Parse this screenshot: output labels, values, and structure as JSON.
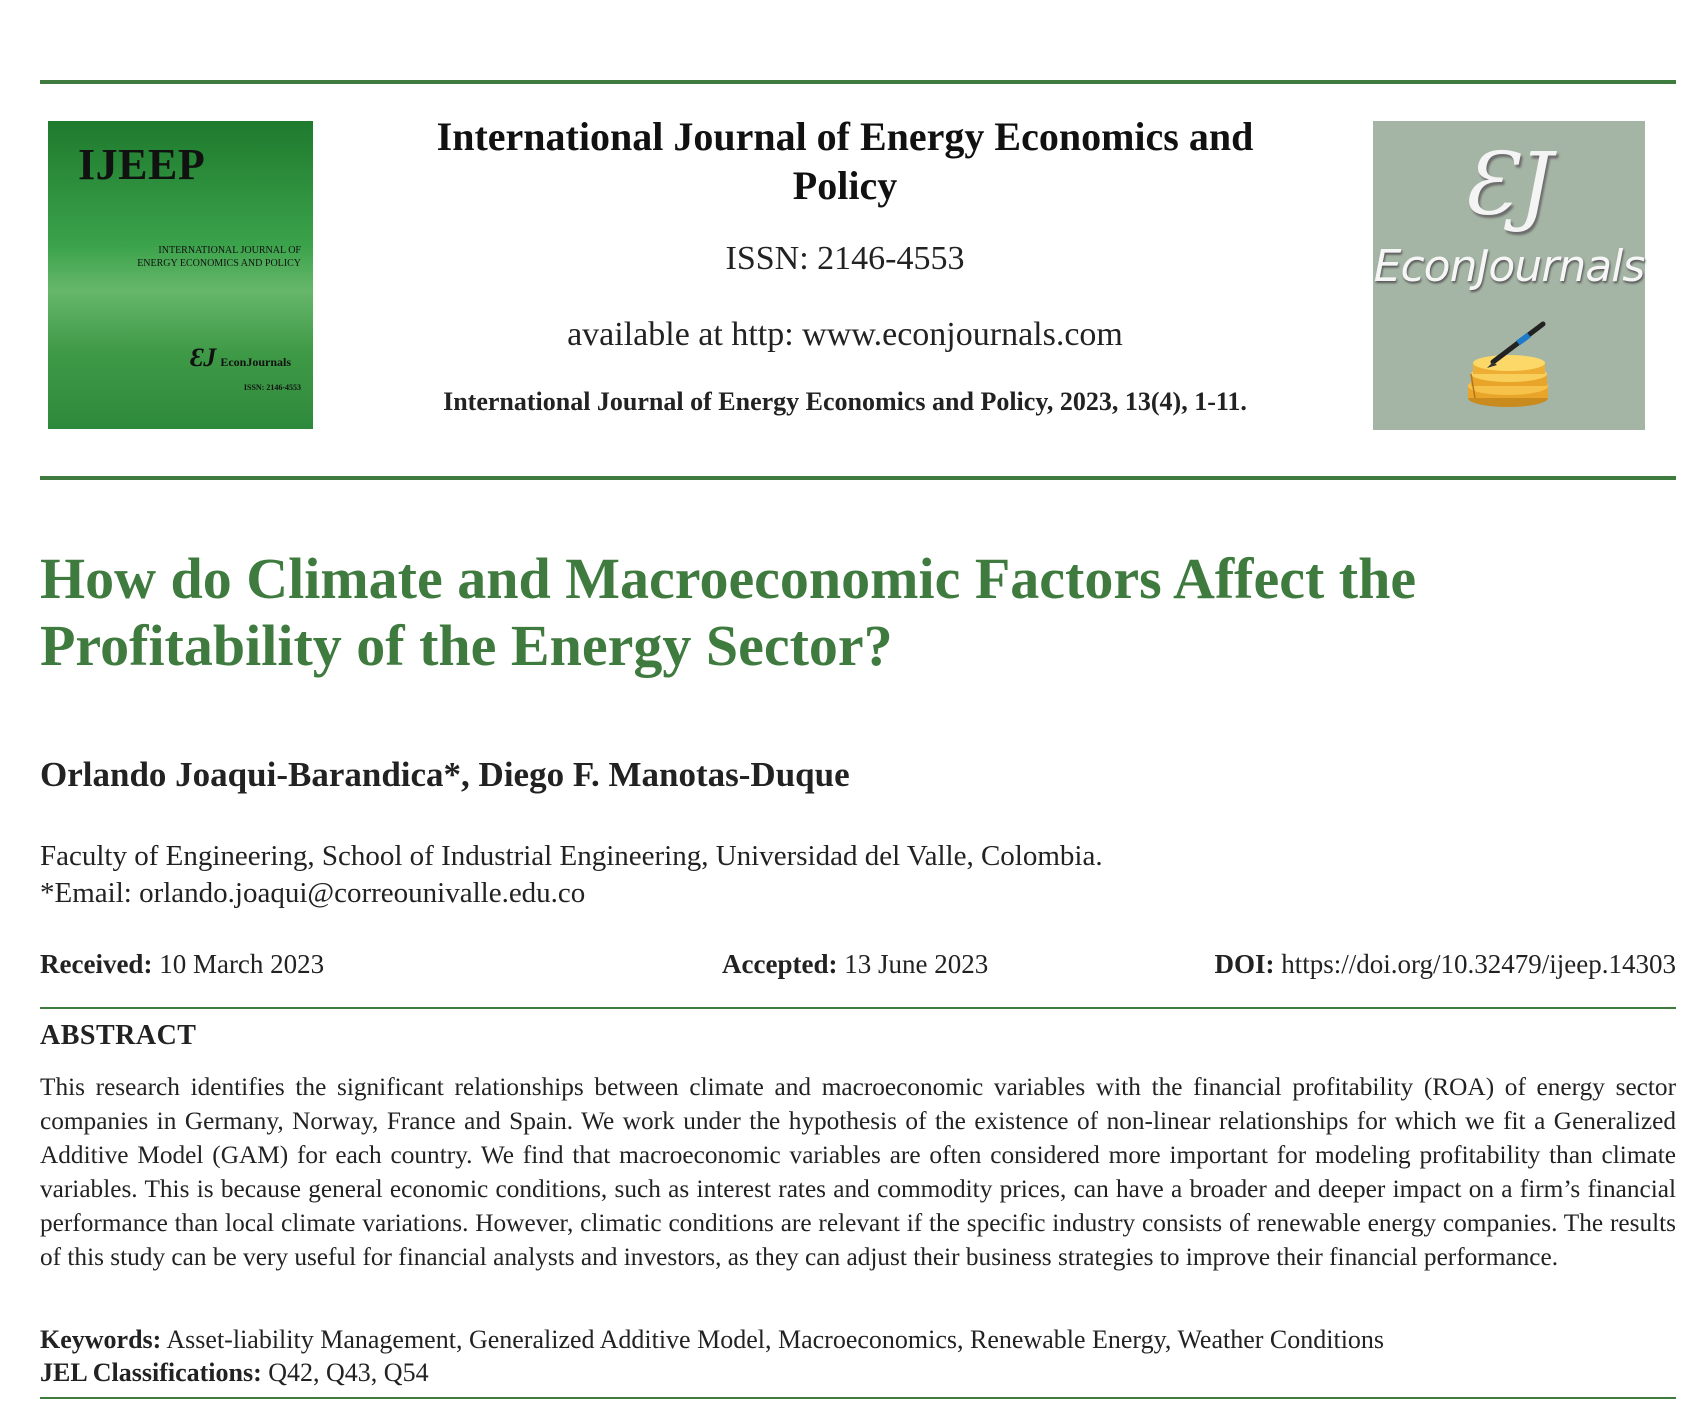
{
  "cover": {
    "title": "IJEEP",
    "subtitle_line1": "INTERNATIONAL JOURNAL OF",
    "subtitle_line2": "ENERGY ECONOMICS AND POLICY",
    "ej_mark": "ƐJ",
    "ej_name": "EconJournals",
    "issn": "ISSN: 2146-4553"
  },
  "header": {
    "journal_title": "International Journal of Energy Economics and Policy",
    "issn": "ISSN: 2146-4553",
    "available": "available at http: www.econjournals.com",
    "citation": "International Journal of Energy Economics and Policy, 2023, 13(4), 1-11."
  },
  "publisher_logo": {
    "mark": "ƐJ",
    "name": "EconJournals"
  },
  "article": {
    "title": "How do Climate and Macroeconomic Factors Affect the Profitability of the Energy Sector?",
    "authors": "Orlando Joaqui-Barandica*, Diego F. Manotas-Duque",
    "affiliation": "Faculty of Engineering, School of Industrial Engineering, Universidad del Valle, Colombia.",
    "email": "*Email: orlando.joaqui@correounivalle.edu.co",
    "received_label": "Received:",
    "received_value": "10 March 2023",
    "accepted_label": "Accepted:",
    "accepted_value": "13 June 2023",
    "doi_label": "DOI:",
    "doi_value": "https://doi.org/10.32479/ijeep.14303",
    "abstract_heading": "ABSTRACT",
    "abstract": "This research identifies the significant relationships between climate and macroeconomic variables with the financial profitability (ROA) of energy sector companies in Germany, Norway, France and Spain. We work under the hypothesis of the existence of non-linear relationships for which we fit a Generalized Additive Model (GAM) for each country. We find that macroeconomic variables are often considered more important for modeling profitability than climate variables. This is because general economic conditions, such as interest rates and commodity prices, can have a broader and deeper impact on a firm’s financial performance than local climate variations. However, climatic conditions are relevant if the specific industry consists of renewable energy companies. The results of this study can be very useful for financial analysts and investors, as they can adjust their business strategies to improve their financial performance.",
    "keywords_label": "Keywords:",
    "keywords_value": "Asset-liability Management, Generalized Additive Model, Macroeconomics, Renewable Energy, Weather Conditions",
    "jel_label": "JEL Classifications:",
    "jel_value": "Q42, Q43, Q54"
  },
  "colors": {
    "accent_green": "#3f7a3f",
    "cover_green": "#3aa24a",
    "logo_grey": "#a5b5a5"
  }
}
